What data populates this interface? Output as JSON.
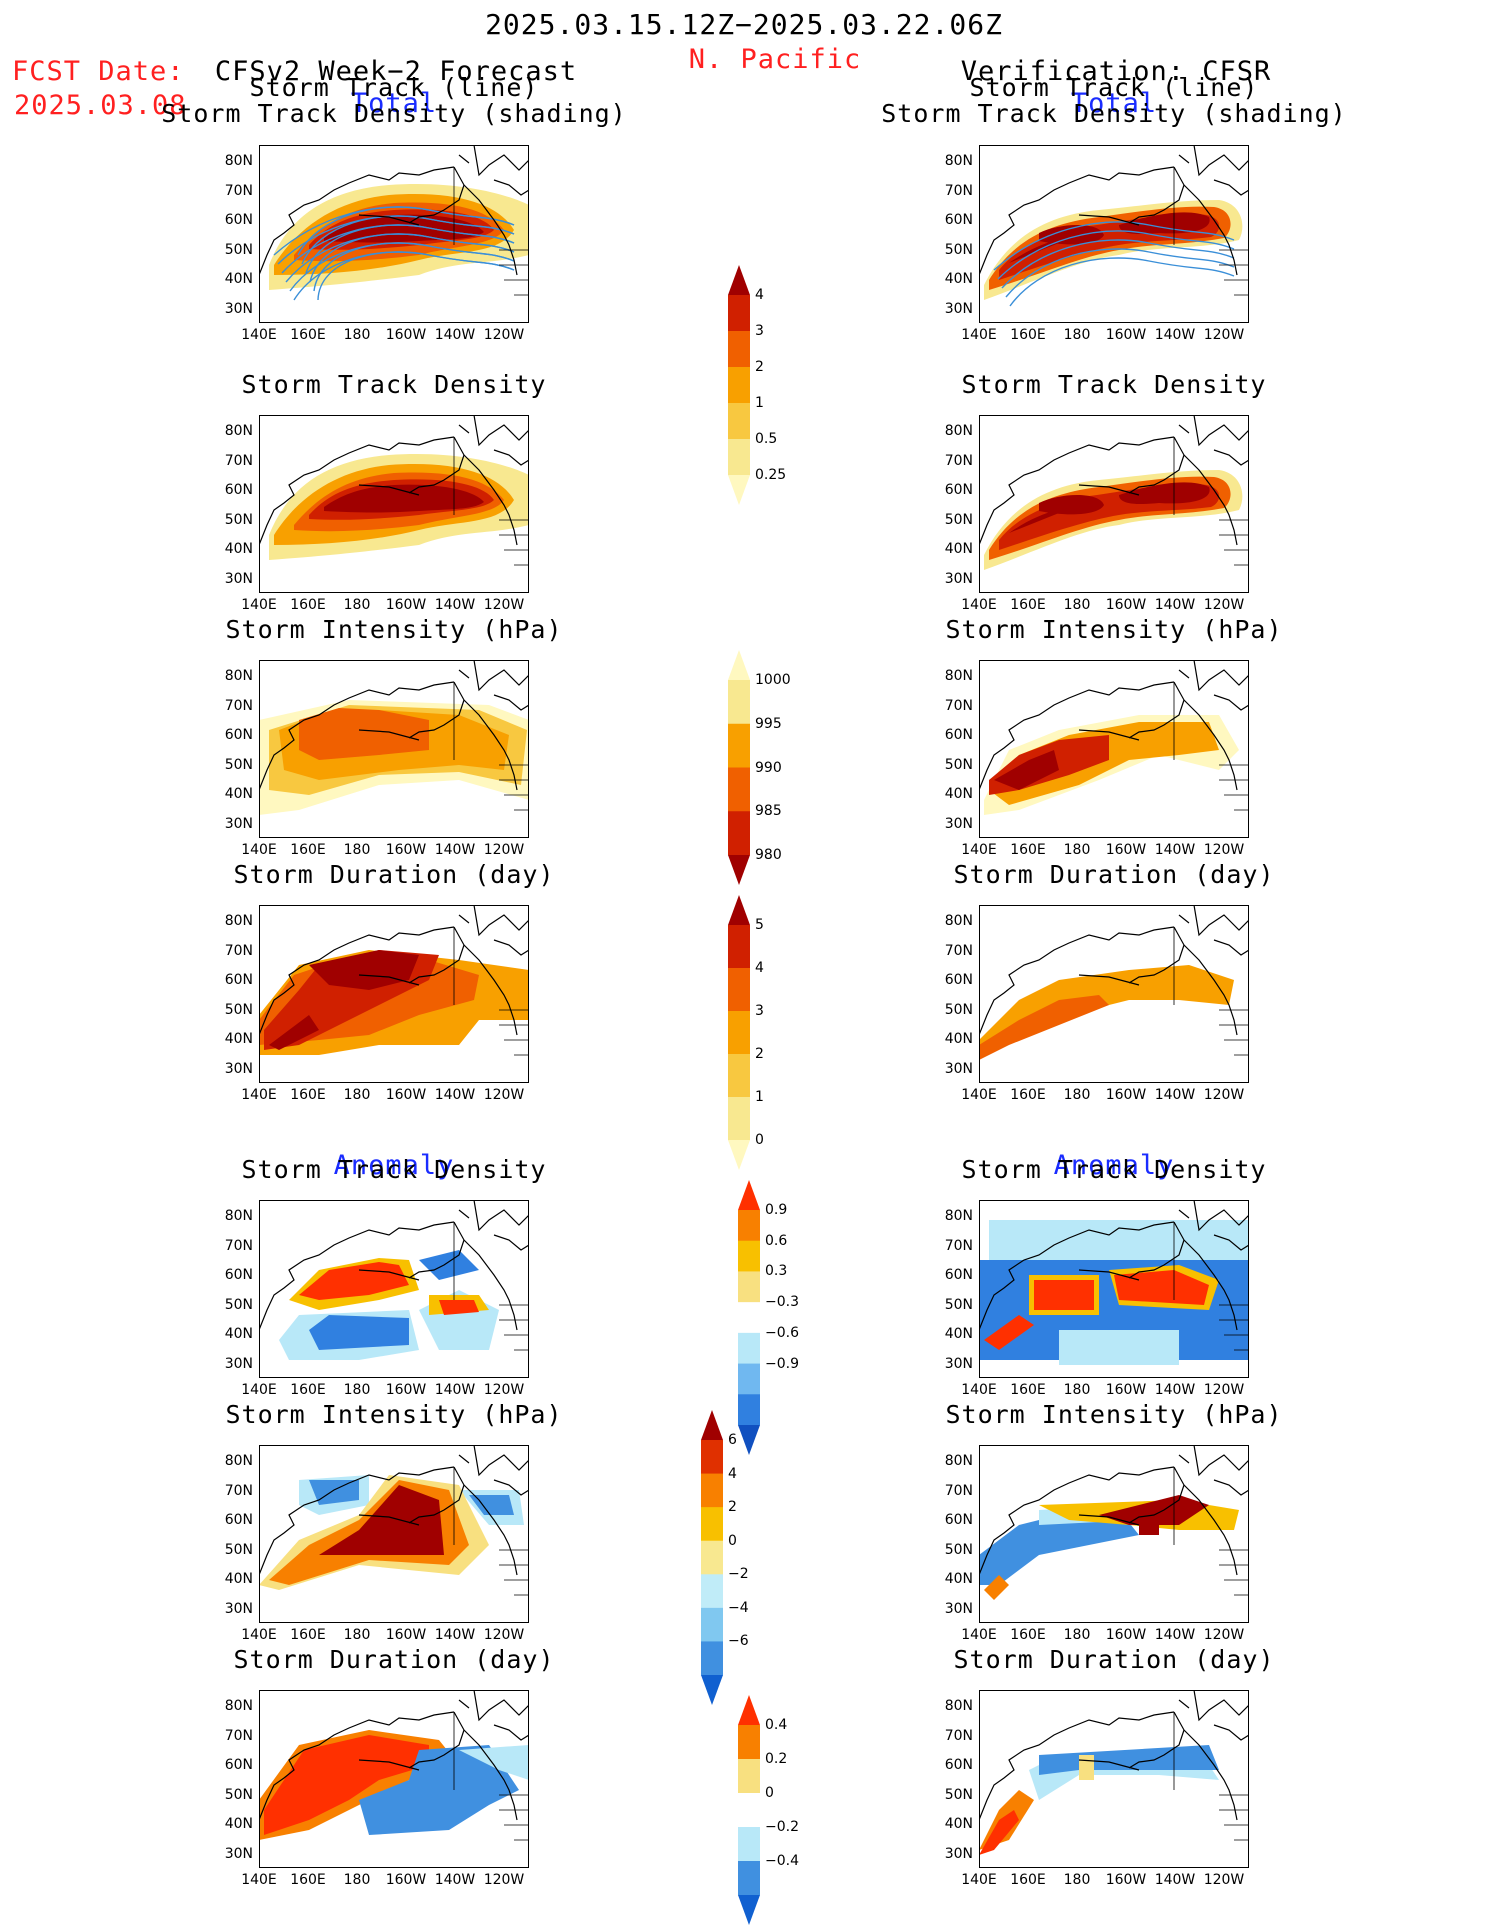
{
  "header": {
    "date_range": "2025.03.15.12Z−2025.03.22.06Z",
    "region": "N. Pacific",
    "fcst_label": "FCST Date:",
    "fcst_date": "2025.03.08",
    "left_title": "CFSv2 Week−2 Forecast",
    "right_title": "Verification: CFSR",
    "total_label": "Total",
    "anomaly_label": "Anomaly"
  },
  "panel_titles": {
    "track_line": "Storm Track (line)",
    "track_density_shading": "Storm Track Density (shading)",
    "track_density": "Storm Track Density",
    "intensity": "Storm Intensity (hPa)",
    "duration": "Storm Duration (day)"
  },
  "axes": {
    "y_ticks": [
      "80N",
      "70N",
      "60N",
      "50N",
      "40N",
      "30N"
    ],
    "x_ticks": [
      "140E",
      "160E",
      "180",
      "160W",
      "140W",
      "120W"
    ]
  },
  "colorbars": {
    "density": {
      "labels": [
        "4",
        "3",
        "2",
        "1",
        "0.5",
        "0.25"
      ],
      "colors": [
        "#a00000",
        "#d02000",
        "#f06000",
        "#f8a000",
        "#f8c840",
        "#f8e890",
        "#fff8c0"
      ]
    },
    "intensity": {
      "labels": [
        "1000",
        "995",
        "990",
        "985",
        "980"
      ],
      "colors": [
        "#fff8c0",
        "#f8e890",
        "#f8a000",
        "#f06000",
        "#d02000",
        "#a00000"
      ]
    },
    "duration": {
      "labels": [
        "5",
        "4",
        "3",
        "2",
        "1",
        "0"
      ],
      "colors": [
        "#a00000",
        "#d02000",
        "#f06000",
        "#f8a000",
        "#f8c840",
        "#f8e890",
        "#fff8c0"
      ]
    },
    "anom_density": {
      "labels": [
        "0.9",
        "0.6",
        "0.3",
        "−0.3",
        "−0.6",
        "−0.9"
      ],
      "colors": [
        "#ff3000",
        "#f88000",
        "#f8c000",
        "#f8e080",
        "#ffffff",
        "#b8e8f8",
        "#70b8f0",
        "#3080e0",
        "#1050c0"
      ]
    },
    "anom_intensity": {
      "labels": [
        "6",
        "4",
        "2",
        "0",
        "−2",
        "−4",
        "−6"
      ],
      "colors": [
        "#a00000",
        "#e03000",
        "#f88000",
        "#f8c000",
        "#f8e890",
        "#c0ecf8",
        "#80c8f0",
        "#4090e0",
        "#1060d0"
      ]
    },
    "anom_duration": {
      "labels": [
        "0.4",
        "0.2",
        "0",
        "−0.2",
        "−0.4"
      ],
      "colors": [
        "#ff3000",
        "#f88000",
        "#f8e080",
        "#ffffff",
        "#b8e8f8",
        "#4090e0",
        "#1060d0"
      ]
    }
  },
  "colors": {
    "title_red": "#ff2020",
    "label_blue": "#1a2cff"
  }
}
